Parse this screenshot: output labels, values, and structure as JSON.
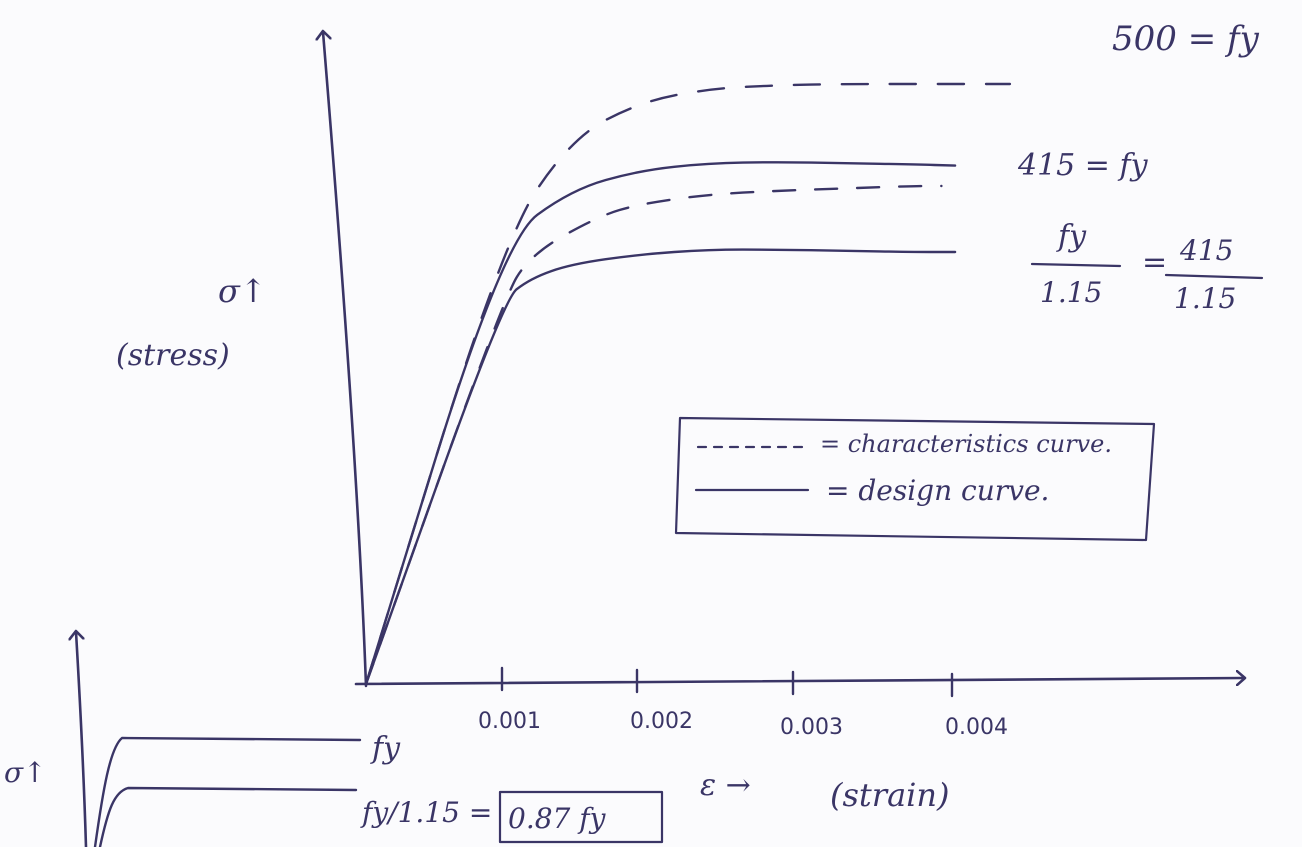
{
  "chart_data": [
    {
      "type": "line",
      "title": "",
      "ylabel_symbol": "σ↑",
      "ylabel": "(stress)",
      "xlabel_symbol": "ε →",
      "xlabel": "(strain)",
      "x_ticks": [
        "0.001",
        "0.002",
        "0.003",
        "0.004"
      ],
      "xlim": [
        0,
        0.005
      ],
      "ylim": [
        0,
        530
      ],
      "series": [
        {
          "style": "dashed",
          "x": [
            0,
            0.001,
            0.0015,
            0.002,
            0.0025,
            0.003,
            0.0035,
            0.004,
            0.0047
          ],
          "y": [
            0,
            370,
            455,
            485,
            496,
            499,
            500,
            500,
            500
          ]
        },
        {
          "style": "solid",
          "x": [
            0,
            0.001,
            0.0015,
            0.002,
            0.0025,
            0.003,
            0.0035,
            0.004,
            0.0043
          ],
          "y": [
            0,
            370,
            412,
            428,
            434,
            435,
            434,
            433,
            432
          ]
        },
        {
          "style": "dashed",
          "x": [
            0,
            0.001,
            0.0012,
            0.0017,
            0.002,
            0.0025,
            0.003,
            0.0035,
            0.004,
            0.0042
          ],
          "y": [
            0,
            320,
            358,
            390,
            400,
            408,
            411,
            413,
            415,
            415
          ]
        },
        {
          "style": "solid",
          "x": [
            0,
            0.001,
            0.0012,
            0.0015,
            0.002,
            0.0025,
            0.003,
            0.0035,
            0.004,
            0.0043
          ],
          "y": [
            0,
            320,
            338,
            350,
            358,
            362,
            362,
            361,
            360,
            360
          ]
        }
      ],
      "annotations": {
        "fy500": "500 = fy",
        "fy415": "415 = fy",
        "design_num": "fy",
        "design_den": "1.15",
        "design_eq": "=",
        "design_num2": "415",
        "design_den2": "1.15"
      },
      "legend": {
        "position": "center-right",
        "items": [
          {
            "style": "dashed",
            "label": "= characteristics curve."
          },
          {
            "style": "solid",
            "label": "= design curve."
          }
        ]
      }
    },
    {
      "type": "line",
      "title": "",
      "ylabel_symbol": "σ↑",
      "labels": {
        "top": "fy",
        "bottom": "fy/1.15 =",
        "boxed": "0.87 fy"
      }
    }
  ]
}
